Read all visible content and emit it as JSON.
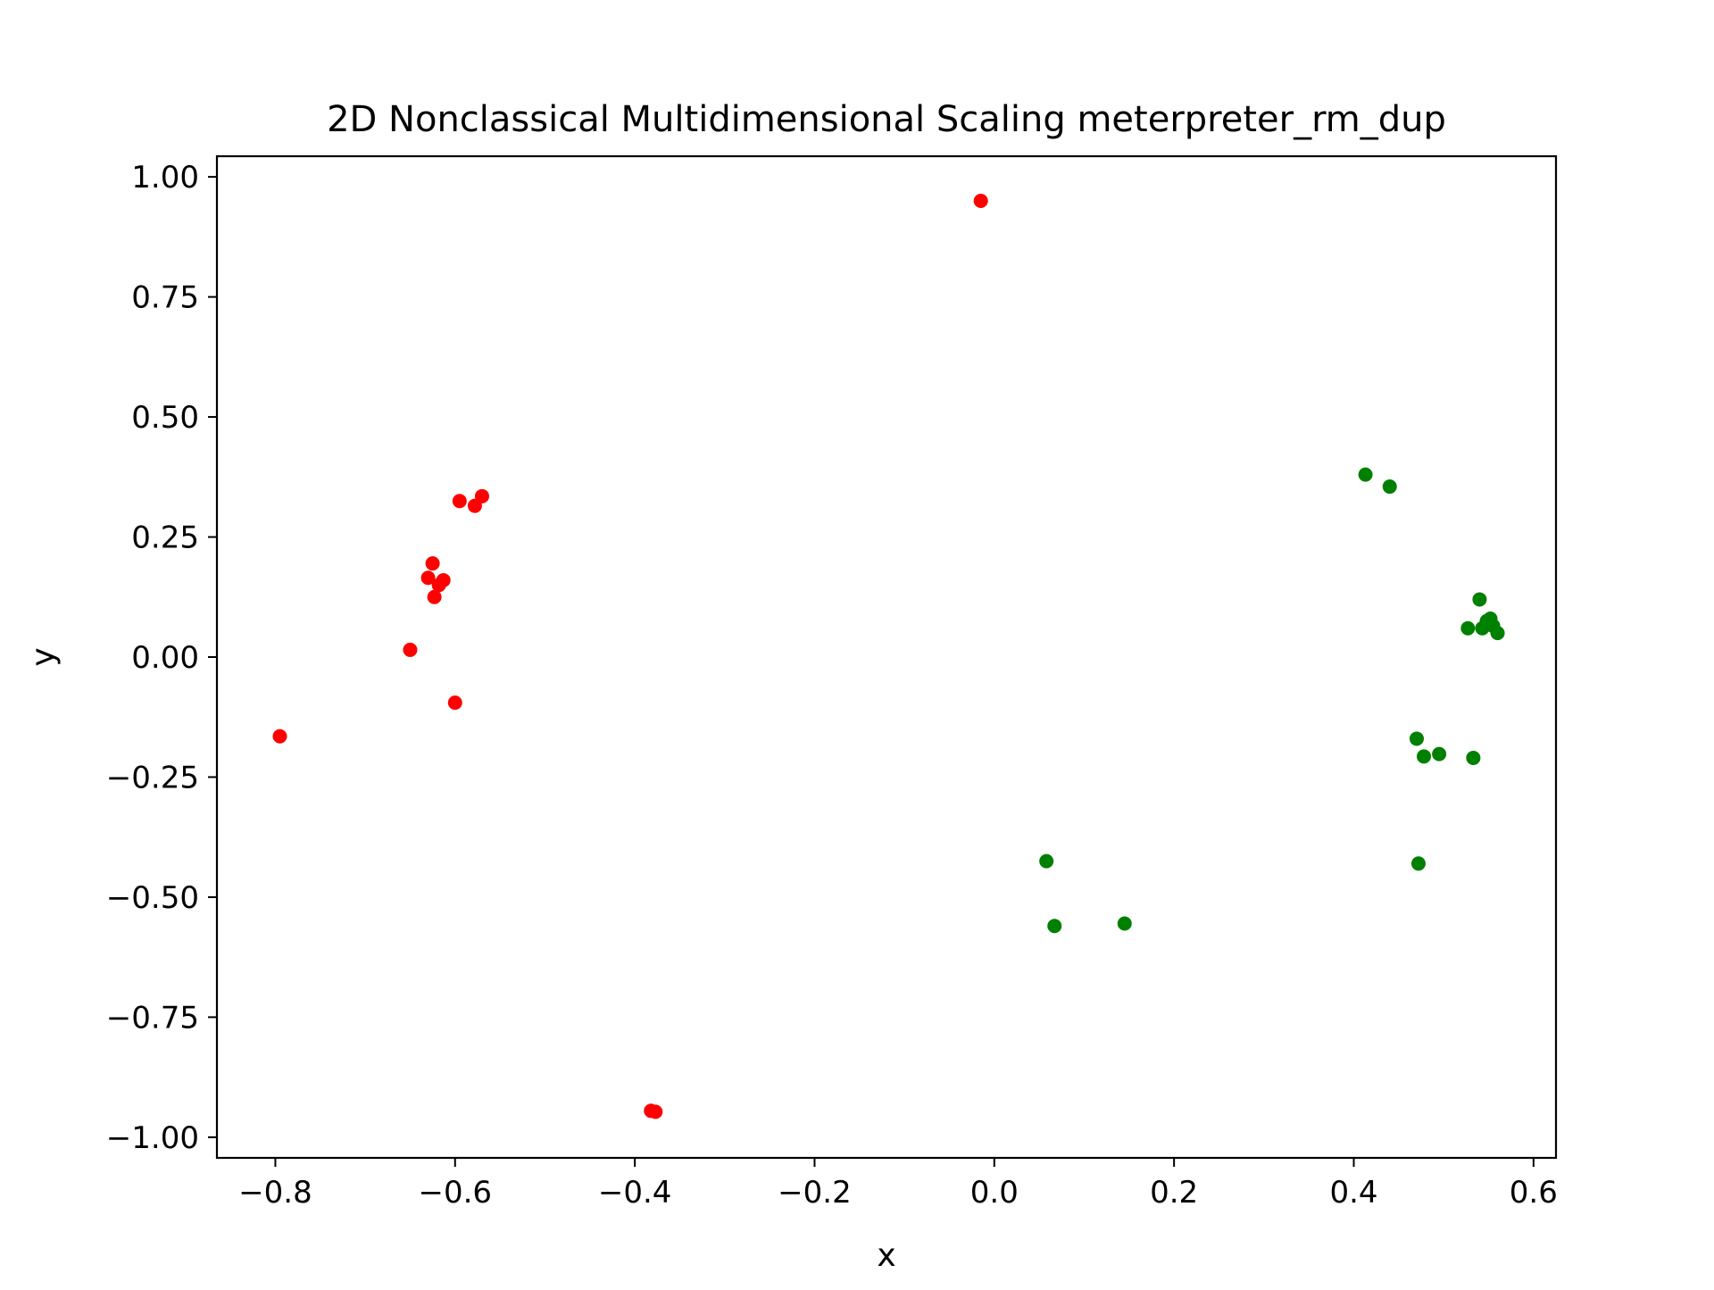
{
  "chart_data": {
    "type": "scatter",
    "title": "2D Nonclassical Multidimensional Scaling meterpreter_rm_dup",
    "xlabel": "x",
    "ylabel": "y",
    "xlim": [
      -0.865,
      0.625
    ],
    "ylim": [
      -1.043,
      1.043
    ],
    "grid": false,
    "legend": "none",
    "x_ticks": [
      {
        "value": -0.8,
        "label": "−0.8"
      },
      {
        "value": -0.6,
        "label": "−0.6"
      },
      {
        "value": -0.4,
        "label": "−0.4"
      },
      {
        "value": -0.2,
        "label": "−0.2"
      },
      {
        "value": 0.0,
        "label": "0.0"
      },
      {
        "value": 0.2,
        "label": "0.2"
      },
      {
        "value": 0.4,
        "label": "0.4"
      },
      {
        "value": 0.6,
        "label": "0.6"
      }
    ],
    "y_ticks": [
      {
        "value": 1.0,
        "label": "1.00"
      },
      {
        "value": 0.75,
        "label": "0.75"
      },
      {
        "value": 0.5,
        "label": "0.50"
      },
      {
        "value": 0.25,
        "label": "0.25"
      },
      {
        "value": 0.0,
        "label": "0.00"
      },
      {
        "value": -0.25,
        "label": "−0.25"
      },
      {
        "value": -0.5,
        "label": "−0.50"
      },
      {
        "value": -0.75,
        "label": "−0.75"
      },
      {
        "value": -1.0,
        "label": "−1.00"
      }
    ],
    "series": [
      {
        "color": "#ff0000",
        "points": [
          [
            -0.015,
            0.95
          ],
          [
            -0.795,
            -0.165
          ],
          [
            -0.65,
            0.015
          ],
          [
            -0.6,
            -0.095
          ],
          [
            -0.625,
            0.195
          ],
          [
            -0.63,
            0.165
          ],
          [
            -0.618,
            0.15
          ],
          [
            -0.613,
            0.16
          ],
          [
            -0.623,
            0.125
          ],
          [
            -0.595,
            0.325
          ],
          [
            -0.578,
            0.315
          ],
          [
            -0.57,
            0.335
          ],
          [
            -0.382,
            -0.945
          ],
          [
            -0.377,
            -0.947
          ]
        ]
      },
      {
        "color": "#008000",
        "points": [
          [
            0.413,
            0.38
          ],
          [
            0.44,
            0.355
          ],
          [
            0.54,
            0.12
          ],
          [
            0.527,
            0.06
          ],
          [
            0.543,
            0.06
          ],
          [
            0.548,
            0.075
          ],
          [
            0.552,
            0.08
          ],
          [
            0.555,
            0.065
          ],
          [
            0.56,
            0.05
          ],
          [
            0.47,
            -0.17
          ],
          [
            0.478,
            -0.207
          ],
          [
            0.495,
            -0.202
          ],
          [
            0.533,
            -0.21
          ],
          [
            0.472,
            -0.43
          ],
          [
            0.058,
            -0.425
          ],
          [
            0.067,
            -0.56
          ],
          [
            0.145,
            -0.555
          ]
        ]
      }
    ]
  }
}
